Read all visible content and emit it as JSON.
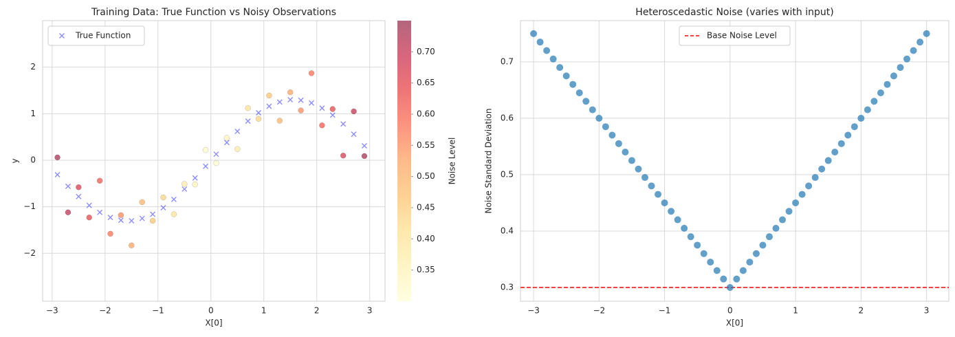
{
  "chart_data": [
    {
      "type": "scatter",
      "title": "Training Data: True Function vs Noisy Observations",
      "xlabel": "X[0]",
      "ylabel": "y",
      "xlim": [
        -3.18,
        3.29
      ],
      "ylim": [
        -3.03,
        3.0
      ],
      "xticks": [
        {
          "value": -3,
          "label": "−3"
        },
        {
          "value": -2,
          "label": "−2"
        },
        {
          "value": -1,
          "label": "−1"
        },
        0,
        1,
        2,
        3
      ],
      "yticks": [
        {
          "value": -2,
          "label": "−2"
        },
        {
          "value": -1,
          "label": "−1"
        },
        0,
        1,
        2
      ],
      "grid": true,
      "legend": "upper left",
      "x": [
        -2.9,
        -2.7,
        -2.5,
        -2.3,
        -2.1,
        -1.9,
        -1.7,
        -1.5,
        -1.3,
        -1.1,
        -0.9,
        -0.7,
        -0.5,
        -0.3,
        -0.1,
        0.1,
        0.3,
        0.5,
        0.7,
        0.9,
        1.1,
        1.3,
        1.5,
        1.7,
        1.9,
        2.1,
        2.3,
        2.5,
        2.7,
        2.9
      ],
      "series": [
        {
          "values": [
            0.06,
            -1.12,
            -0.58,
            -1.23,
            -0.44,
            -1.58,
            -1.18,
            -1.83,
            -0.9,
            -1.3,
            -0.8,
            -1.16,
            -0.51,
            -0.52,
            0.22,
            -0.06,
            0.48,
            0.24,
            1.12,
            0.89,
            1.39,
            0.85,
            1.46,
            1.07,
            1.87,
            0.75,
            1.1,
            0.1,
            1.05,
            0.09
          ],
          "color_values": [
            0.735,
            0.705,
            0.675,
            0.645,
            0.615,
            0.585,
            0.555,
            0.525,
            0.495,
            0.465,
            0.435,
            0.405,
            0.375,
            0.345,
            0.315,
            0.315,
            0.345,
            0.375,
            0.405,
            0.435,
            0.465,
            0.495,
            0.525,
            0.555,
            0.585,
            0.615,
            0.645,
            0.675,
            0.705,
            0.735
          ],
          "marker": "o"
        },
        {
          "name": "True Function",
          "color": "#0000ff",
          "marker": "x",
          "values": [
            -0.31,
            -0.56,
            -0.78,
            -0.97,
            -1.12,
            -1.23,
            -1.29,
            -1.3,
            -1.25,
            -1.16,
            -1.02,
            -0.84,
            -0.62,
            -0.38,
            -0.13,
            0.13,
            0.38,
            0.62,
            0.84,
            1.02,
            1.16,
            1.25,
            1.3,
            1.29,
            1.23,
            1.12,
            0.97,
            0.78,
            0.56,
            0.31
          ]
        }
      ],
      "colorbar": {
        "label": "Noise Level",
        "colormap": "YlOrRd",
        "lim": [
          0.3,
          0.75
        ],
        "ticks": [
          0.35,
          {
            "value": 0.4,
            "label": "0.40"
          },
          0.45,
          {
            "value": 0.5,
            "label": "0.50"
          },
          0.55,
          {
            "value": 0.6,
            "label": "0.60"
          },
          0.65,
          {
            "value": 0.7,
            "label": "0.70"
          }
        ]
      }
    },
    {
      "type": "scatter",
      "title": "Heteroscedastic Noise (varies with input)",
      "xlabel": "X[0]",
      "ylabel": "Noise Standard Deviation",
      "xlim": [
        -3.2,
        3.34
      ],
      "ylim": [
        0.2756,
        0.773
      ],
      "xticks": [
        {
          "value": -3,
          "label": "−3"
        },
        {
          "value": -2,
          "label": "−2"
        },
        {
          "value": -1,
          "label": "−1"
        },
        0,
        1,
        2,
        3
      ],
      "yticks": [
        0.3,
        0.4,
        0.5,
        0.6,
        0.7
      ],
      "grid": true,
      "legend": "upper center",
      "x": [
        -3,
        -2.9,
        -2.8,
        -2.7,
        -2.6,
        -2.5,
        -2.4,
        -2.3,
        -2.2,
        -2.1,
        -2,
        -1.9,
        -1.8,
        -1.7,
        -1.6,
        -1.5,
        -1.4,
        -1.3,
        -1.2,
        -1.1,
        -1,
        -0.9,
        -0.8,
        -0.7,
        -0.6,
        -0.5,
        -0.4,
        -0.3,
        -0.2,
        -0.1,
        0,
        0.1,
        0.2,
        0.3,
        0.4,
        0.5,
        0.6,
        0.7,
        0.8,
        0.9,
        1,
        1.1,
        1.2,
        1.3,
        1.4,
        1.5,
        1.6,
        1.7,
        1.8,
        1.9,
        2,
        2.1,
        2.2,
        2.3,
        2.4,
        2.5,
        2.6,
        2.7,
        2.8,
        2.9,
        3
      ],
      "series": [
        {
          "color": "#1f77b4",
          "marker": "o",
          "values": [
            0.75,
            0.735,
            0.72,
            0.705,
            0.69,
            0.675,
            0.66,
            0.645,
            0.63,
            0.615,
            0.6,
            0.585,
            0.57,
            0.555,
            0.54,
            0.525,
            0.51,
            0.495,
            0.48,
            0.465,
            0.45,
            0.435,
            0.42,
            0.405,
            0.39,
            0.375,
            0.36,
            0.345,
            0.33,
            0.315,
            0.3,
            0.315,
            0.33,
            0.345,
            0.36,
            0.375,
            0.39,
            0.405,
            0.42,
            0.435,
            0.45,
            0.465,
            0.48,
            0.495,
            0.51,
            0.525,
            0.54,
            0.555,
            0.57,
            0.585,
            0.6,
            0.615,
            0.63,
            0.645,
            0.66,
            0.675,
            0.69,
            0.705,
            0.72,
            0.735,
            0.75
          ]
        }
      ],
      "hlines": [
        {
          "name": "Base Noise Level",
          "value": 0.3,
          "color": "#ff0000",
          "style": "dashed"
        }
      ]
    }
  ]
}
